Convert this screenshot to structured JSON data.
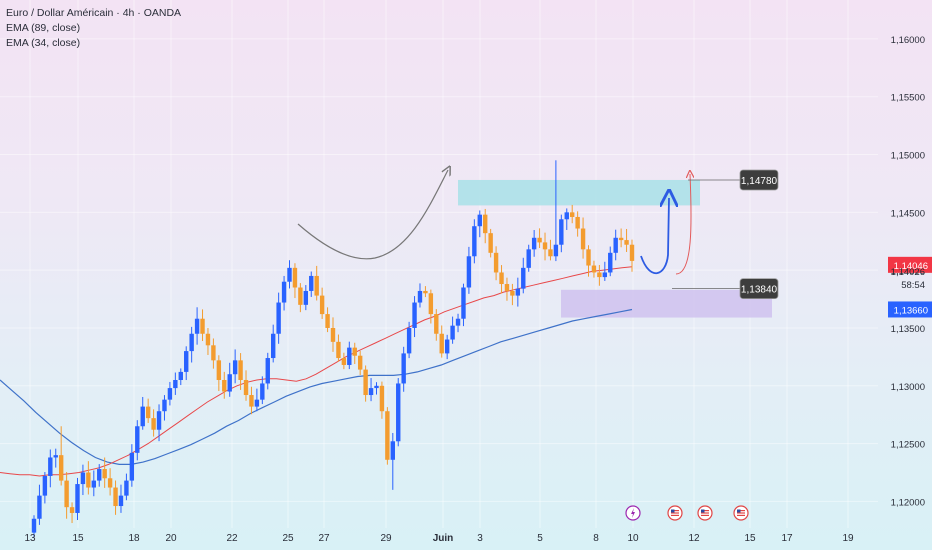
{
  "header": {
    "title": "Euro / Dollar Américain · 4h · OANDA",
    "indicators": [
      "EMA (89, close)",
      "EMA (34, close)"
    ]
  },
  "colors": {
    "bull": "#2962ff",
    "bear": "#f39c2f",
    "ema_fast": "#e8484a",
    "ema_slow": "#3f72c9",
    "resistance_zone": "#a8e0e8",
    "support_zone": "#cfc2ee",
    "projection_blue": "#2d5be3",
    "projection_red": "#e35a5a",
    "arc": "#777777"
  },
  "chart_data": {
    "type": "candlestick",
    "instrument": "Euro / Dollar Américain",
    "timeframe": "4h",
    "source": "OANDA",
    "x_tick_labels": [
      "13",
      "15",
      "18",
      "20",
      "22",
      "25",
      "27",
      "29",
      "Juin",
      "3",
      "5",
      "8",
      "10",
      "12",
      "15",
      "17",
      "19"
    ],
    "ylim": [
      1.1177,
      1.1625
    ],
    "y_tick_labels": [
      "1,16000",
      "1,15500",
      "1,15000",
      "1,14500",
      "1,14000",
      "1,13500",
      "1,13000",
      "1,12500",
      "1,12000"
    ],
    "y_tick_values": [
      1.16,
      1.155,
      1.15,
      1.145,
      1.14,
      1.135,
      1.13,
      1.125,
      1.12
    ],
    "price_labels": [
      {
        "text": "1,14046",
        "value": 1.14046,
        "color": "#f23645"
      },
      {
        "text": "1,13660",
        "value": 1.1366,
        "color": "#2962ff"
      }
    ],
    "last_price": {
      "text": "1,14026",
      "countdown": "58:54",
      "value": 1.14026
    },
    "levels": [
      {
        "text": "1,14780",
        "value": 1.1478
      },
      {
        "text": "1,13840",
        "value": 1.1384
      }
    ],
    "zones": [
      {
        "name": "resistance",
        "from": 1.1456,
        "to": 1.1478
      },
      {
        "name": "support",
        "from": 1.1359,
        "to": 1.1383
      }
    ],
    "events": [
      "lightning",
      "us-flag",
      "us-flag",
      "us-flag"
    ],
    "candles_close": [
      1.1185,
      1.1205,
      1.1222,
      1.1238,
      1.124,
      1.1218,
      1.1195,
      1.119,
      1.1215,
      1.1225,
      1.1212,
      1.1218,
      1.1228,
      1.122,
      1.1212,
      1.1196,
      1.1205,
      1.1218,
      1.1242,
      1.1265,
      1.1282,
      1.1272,
      1.1262,
      1.1278,
      1.1288,
      1.1298,
      1.1305,
      1.1312,
      1.133,
      1.1345,
      1.1358,
      1.1345,
      1.1335,
      1.1322,
      1.1305,
      1.1295,
      1.131,
      1.1322,
      1.1305,
      1.1292,
      1.1282,
      1.1288,
      1.1302,
      1.1324,
      1.1345,
      1.1372,
      1.139,
      1.1402,
      1.1385,
      1.137,
      1.1382,
      1.1395,
      1.1378,
      1.1362,
      1.135,
      1.1338,
      1.1324,
      1.1318,
      1.1333,
      1.1326,
      1.1314,
      1.1292,
      1.1298,
      1.13,
      1.1278,
      1.1236,
      1.1252,
      1.1302,
      1.1328,
      1.135,
      1.1372,
      1.1382,
      1.138,
      1.1362,
      1.1345,
      1.1328,
      1.134,
      1.1352,
      1.1358,
      1.1385,
      1.1412,
      1.1438,
      1.1448,
      1.1432,
      1.1415,
      1.1398,
      1.1388,
      1.1382,
      1.1378,
      1.1384,
      1.1402,
      1.1418,
      1.1428,
      1.1424,
      1.1418,
      1.1412,
      1.1422,
      1.1444,
      1.145,
      1.1446,
      1.1436,
      1.1418,
      1.1404,
      1.1398,
      1.1394,
      1.1398,
      1.1415,
      1.1428,
      1.1426,
      1.1422,
      1.1408
    ],
    "ema_34": [
      1.1225,
      1.1224,
      1.1223,
      1.1223,
      1.1222,
      1.1223,
      1.1223,
      1.1224,
      1.1225,
      1.1227,
      1.1229,
      1.1232,
      1.1236,
      1.124,
      1.1245,
      1.125,
      1.1256,
      1.1262,
      1.1268,
      1.1274,
      1.128,
      1.1286,
      1.1291,
      1.1296,
      1.13,
      1.1303,
      1.1305,
      1.1306,
      1.1306,
      1.1305,
      1.1304,
      1.1306,
      1.131,
      1.1315,
      1.132,
      1.1325,
      1.1329,
      1.1333,
      1.1337,
      1.1341,
      1.1345,
      1.1349,
      1.1353,
      1.1357,
      1.136,
      1.1364,
      1.1367,
      1.137,
      1.1373,
      1.1376,
      1.1378,
      1.1381,
      1.1383,
      1.1385,
      1.1387,
      1.1389,
      1.1391,
      1.1393,
      1.1395,
      1.1397,
      1.1399,
      1.14,
      1.1401,
      1.1402,
      1.1403
    ],
    "ema_89": [
      1.1305,
      1.1296,
      1.1287,
      1.1277,
      1.1268,
      1.1259,
      1.1251,
      1.1244,
      1.1238,
      1.1234,
      1.1232,
      1.1232,
      1.1234,
      1.1237,
      1.1241,
      1.1245,
      1.1249,
      1.1254,
      1.1259,
      1.1265,
      1.127,
      1.1276,
      1.1281,
      1.1286,
      1.1291,
      1.1295,
      1.1299,
      1.1302,
      1.1304,
      1.1306,
      1.1308,
      1.1309,
      1.1309,
      1.1309,
      1.131,
      1.1312,
      1.1315,
      1.1318,
      1.1322,
      1.1326,
      1.133,
      1.1334,
      1.1338,
      1.1341,
      1.1344,
      1.1347,
      1.135,
      1.1353,
      1.1356,
      1.1358,
      1.136,
      1.1362,
      1.1364,
      1.1366
    ]
  }
}
